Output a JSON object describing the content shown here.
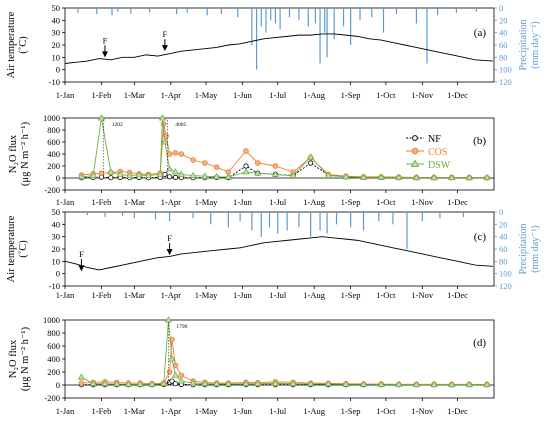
{
  "months": [
    "1-Jan",
    "1-Feb",
    "1-Mar",
    "1-Apr",
    "1-May",
    "1-Jun",
    "1-Jul",
    "1-Aug",
    "1-Sep",
    "1-Oct",
    "1-Nov",
    "1-Dec"
  ],
  "colors": {
    "temperature": "#000000",
    "precipitation": "#5b9bd5",
    "NF": "#000000",
    "COS": "#ed7d31",
    "DSW": "#70ad47",
    "zero_line": "#000000"
  },
  "chart_data": [
    {
      "panel": "(a)",
      "type": "line",
      "ylabel": "Air temperature (˚C)",
      "ylim": [
        -10,
        50
      ],
      "yticks": [
        -10,
        0,
        10,
        20,
        30,
        40,
        50
      ],
      "y2label": "Precipitation (mm day⁻¹)",
      "y2lim": [
        0,
        120
      ],
      "y2ticks": [
        0,
        20,
        40,
        60,
        80,
        100,
        120
      ],
      "y2_inverted": true,
      "fertilization_markers": [
        {
          "label": "F",
          "day": 35,
          "value": 10
        },
        {
          "label": "F",
          "day": 86,
          "value": 15
        }
      ],
      "temperature": {
        "days": [
          1,
          10,
          20,
          30,
          40,
          50,
          60,
          70,
          80,
          90,
          100,
          110,
          120,
          130,
          140,
          150,
          160,
          170,
          180,
          190,
          200,
          210,
          220,
          230,
          240,
          250,
          260,
          270,
          280,
          290,
          300,
          310,
          320,
          330,
          340,
          350,
          365
        ],
        "values": [
          5,
          6,
          7,
          9,
          8,
          10,
          10,
          12,
          11,
          13,
          15,
          16,
          17,
          18,
          20,
          21,
          23,
          25,
          26,
          27,
          28,
          28,
          29,
          29,
          28,
          27,
          25,
          24,
          22,
          20,
          18,
          16,
          14,
          12,
          10,
          8,
          7
        ]
      },
      "precipitation": {
        "days": [
          12,
          28,
          41,
          46,
          57,
          73,
          96,
          105,
          122,
          134,
          148,
          160,
          164,
          168,
          172,
          176,
          180,
          184,
          192,
          200,
          208,
          214,
          218,
          222,
          224,
          230,
          238,
          244,
          252,
          262,
          272,
          283,
          300,
          309,
          318,
          334,
          351
        ],
        "values": [
          8,
          10,
          12,
          6,
          9,
          7,
          10,
          8,
          12,
          10,
          15,
          60,
          100,
          30,
          40,
          20,
          25,
          35,
          15,
          20,
          30,
          25,
          90,
          40,
          80,
          50,
          30,
          60,
          20,
          15,
          40,
          10,
          25,
          90,
          12,
          8,
          6
        ]
      }
    },
    {
      "panel": "(b)",
      "type": "line",
      "ylabel": "N₂O flux (μg N m⁻² h⁻¹)",
      "ylim": [
        -200,
        1000
      ],
      "yticks": [
        -200,
        0,
        200,
        400,
        600,
        800,
        1000
      ],
      "series": [
        {
          "name": "NF",
          "days": [
            15,
            25,
            32,
            40,
            48,
            56,
            64,
            72,
            82,
            86,
            90,
            95,
            100,
            110,
            120,
            130,
            140,
            155,
            165,
            180,
            195,
            210,
            225,
            240,
            255,
            270,
            285,
            300,
            315,
            330,
            345,
            360
          ],
          "values": [
            5,
            10,
            15,
            5,
            10,
            5,
            10,
            5,
            10,
            60,
            20,
            10,
            5,
            5,
            5,
            10,
            5,
            200,
            80,
            60,
            40,
            250,
            50,
            20,
            10,
            10,
            5,
            5,
            5,
            5,
            5,
            5
          ]
        },
        {
          "name": "COS",
          "days": [
            15,
            25,
            32,
            40,
            48,
            56,
            64,
            72,
            82,
            85,
            87,
            90,
            95,
            100,
            110,
            120,
            130,
            140,
            155,
            165,
            180,
            195,
            210,
            225,
            240,
            255,
            270,
            285,
            300,
            315,
            330,
            345,
            360
          ],
          "values": [
            50,
            70,
            80,
            90,
            110,
            90,
            70,
            60,
            80,
            900,
            700,
            400,
            420,
            400,
            300,
            250,
            180,
            100,
            450,
            250,
            200,
            100,
            340,
            60,
            30,
            20,
            20,
            15,
            10,
            10,
            10,
            8,
            5
          ]
        },
        {
          "name": "DSW",
          "days": [
            15,
            25,
            32,
            40,
            48,
            56,
            64,
            72,
            82,
            84,
            86,
            90,
            95,
            100,
            110,
            120,
            130,
            140,
            155,
            165,
            180,
            195,
            210,
            225,
            240,
            255,
            270,
            285,
            300,
            315,
            330,
            345,
            360
          ],
          "values": [
            20,
            40,
            1000,
            100,
            60,
            40,
            50,
            40,
            60,
            1000,
            600,
            150,
            100,
            60,
            40,
            30,
            20,
            15,
            100,
            80,
            60,
            40,
            350,
            40,
            20,
            10,
            10,
            8,
            5,
            5,
            5,
            5,
            5
          ]
        }
      ],
      "annotations": [
        {
          "label": "1202",
          "day": 34
        },
        {
          "label": "4005",
          "day": 88
        }
      ],
      "legend": "right"
    },
    {
      "panel": "(c)",
      "type": "line",
      "ylabel": "Air temperature (˚C)",
      "ylim": [
        -10,
        50
      ],
      "yticks": [
        -10,
        0,
        10,
        20,
        30,
        40,
        50
      ],
      "y2label": "Precipitation (mm day⁻¹)",
      "y2lim": [
        0,
        120
      ],
      "y2ticks": [
        0,
        20,
        40,
        60,
        80,
        100,
        120
      ],
      "y2_inverted": true,
      "fertilization_markers": [
        {
          "label": "F",
          "day": 15,
          "value": 2
        },
        {
          "label": "F",
          "day": 90,
          "value": 15
        }
      ],
      "temperature": {
        "days": [
          1,
          10,
          20,
          30,
          40,
          50,
          60,
          70,
          80,
          90,
          100,
          110,
          120,
          130,
          140,
          150,
          160,
          170,
          180,
          190,
          200,
          210,
          220,
          230,
          240,
          250,
          260,
          270,
          280,
          290,
          300,
          310,
          320,
          330,
          340,
          350,
          365
        ],
        "values": [
          10,
          8,
          5,
          3,
          5,
          7,
          9,
          11,
          13,
          14,
          16,
          17,
          18,
          19,
          20,
          21,
          23,
          25,
          26,
          27,
          28,
          29,
          30,
          29,
          28,
          27,
          25,
          23,
          21,
          19,
          17,
          15,
          13,
          11,
          9,
          7,
          6
        ]
      },
      "precipitation": {
        "days": [
          20,
          35,
          50,
          60,
          78,
          90,
          110,
          125,
          140,
          150,
          160,
          168,
          175,
          182,
          190,
          200,
          210,
          218,
          224,
          232,
          244,
          255,
          268,
          280,
          292,
          305,
          320,
          340
        ],
        "values": [
          5,
          8,
          6,
          10,
          12,
          15,
          10,
          20,
          25,
          15,
          30,
          40,
          25,
          35,
          30,
          25,
          40,
          30,
          35,
          20,
          25,
          30,
          15,
          20,
          60,
          15,
          10,
          8
        ]
      }
    },
    {
      "panel": "(d)",
      "type": "line",
      "ylabel": "N₂O flux (μg N m⁻² h⁻¹)",
      "ylim": [
        -200,
        1000
      ],
      "yticks": [
        -200,
        0,
        200,
        400,
        600,
        800,
        1000
      ],
      "series": [
        {
          "name": "NF",
          "days": [
            15,
            25,
            35,
            45,
            55,
            65,
            75,
            85,
            90,
            92,
            95,
            100,
            110,
            120,
            130,
            140,
            155,
            165,
            180,
            195,
            210,
            225,
            240,
            255,
            270,
            285,
            300,
            315,
            330,
            345,
            360
          ],
          "values": [
            5,
            5,
            5,
            5,
            5,
            5,
            5,
            10,
            40,
            60,
            20,
            10,
            5,
            5,
            5,
            5,
            5,
            5,
            5,
            5,
            5,
            5,
            5,
            5,
            5,
            5,
            5,
            5,
            5,
            5,
            5
          ]
        },
        {
          "name": "COS",
          "days": [
            15,
            25,
            35,
            45,
            55,
            65,
            75,
            85,
            90,
            92,
            95,
            100,
            110,
            120,
            130,
            140,
            155,
            165,
            180,
            195,
            210,
            225,
            240,
            255,
            270,
            285,
            300,
            315,
            330,
            345,
            360
          ],
          "values": [
            30,
            40,
            50,
            40,
            30,
            30,
            20,
            30,
            200,
            700,
            300,
            150,
            60,
            40,
            30,
            30,
            40,
            35,
            50,
            40,
            30,
            25,
            20,
            15,
            15,
            10,
            10,
            10,
            10,
            10,
            8
          ]
        },
        {
          "name": "DSW",
          "days": [
            15,
            25,
            35,
            45,
            55,
            65,
            75,
            85,
            89,
            92,
            95,
            100,
            110,
            120,
            130,
            140,
            155,
            165,
            180,
            195,
            210,
            225,
            240,
            255,
            270,
            285,
            300,
            315,
            330,
            345,
            360
          ],
          "values": [
            120,
            20,
            20,
            15,
            10,
            10,
            10,
            20,
            1050,
            400,
            150,
            60,
            30,
            20,
            15,
            15,
            20,
            20,
            25,
            20,
            15,
            15,
            10,
            10,
            8,
            8,
            5,
            5,
            5,
            5,
            5
          ]
        }
      ],
      "annotations": [
        {
          "label": "1790",
          "day": 89
        }
      ]
    }
  ]
}
